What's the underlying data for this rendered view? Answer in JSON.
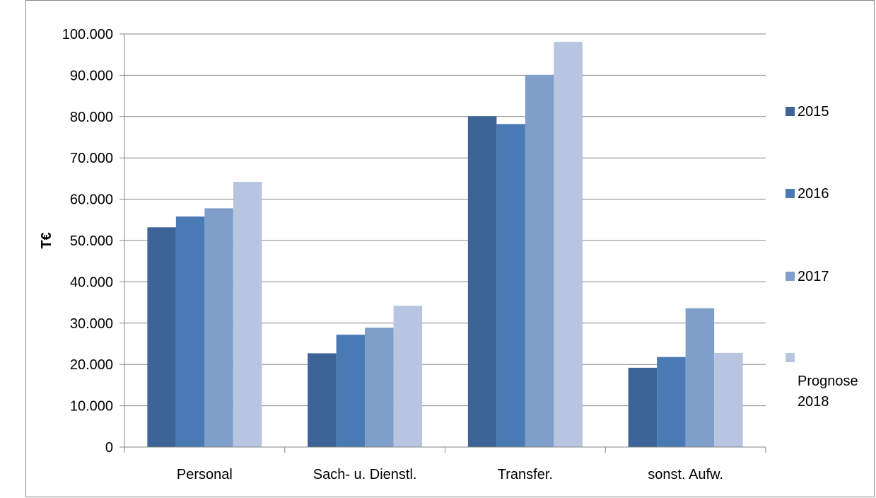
{
  "chart_data": {
    "type": "bar",
    "title": "",
    "xlabel": "",
    "ylabel": "T€",
    "ylim": [
      0,
      100000
    ],
    "yticks": [
      0,
      10000,
      20000,
      30000,
      40000,
      50000,
      60000,
      70000,
      80000,
      90000,
      100000
    ],
    "ytick_labels": [
      "0",
      "10.000",
      "20.000",
      "30.000",
      "40.000",
      "50.000",
      "60.000",
      "70.000",
      "80.000",
      "90.000",
      "100.000"
    ],
    "categories": [
      "Personal",
      "Sach- u. Dienstl.",
      "Transfer.",
      "sonst. Aufw."
    ],
    "series": [
      {
        "name": "2015",
        "color": "#3c6496",
        "values": [
          53200,
          22700,
          80100,
          19200
        ]
      },
      {
        "name": "2016",
        "color": "#4a7ab4",
        "values": [
          55800,
          27200,
          78200,
          21800
        ]
      },
      {
        "name": "2017",
        "color": "#7f9ec9",
        "values": [
          57800,
          28900,
          90100,
          33600
        ]
      },
      {
        "name": "Prognose 2018",
        "color": "#b7c5e0",
        "values": [
          64200,
          34200,
          98100,
          22800
        ]
      }
    ],
    "grid": true,
    "legend_position": "right"
  }
}
